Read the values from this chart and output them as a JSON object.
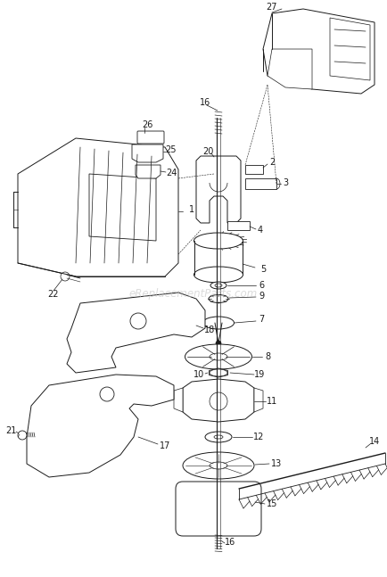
{
  "bg_color": "#ffffff",
  "line_color": "#1a1a1a",
  "watermark": "eReplacementParts.com",
  "watermark_color": "#c0c0c0",
  "fig_width": 4.35,
  "fig_height": 6.47,
  "dpi": 100,
  "lw": 0.7
}
